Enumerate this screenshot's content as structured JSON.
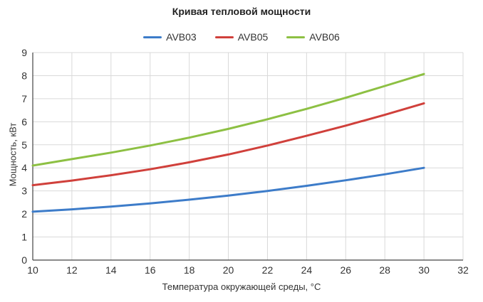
{
  "chart_data": {
    "type": "line",
    "title": "Кривая тепловой мощности",
    "xlabel": "Температура окружающей среды, °С",
    "ylabel": "Мощность, кВт",
    "xlim": [
      10,
      32
    ],
    "ylim": [
      0,
      9
    ],
    "xticks": [
      "10",
      "12",
      "14",
      "16",
      "18",
      "20",
      "22",
      "24",
      "26",
      "28",
      "30",
      "32"
    ],
    "yticks": [
      "0",
      "1",
      "2",
      "3",
      "4",
      "5",
      "6",
      "7",
      "8",
      "9"
    ],
    "grid": true,
    "legend_position": "top",
    "x": [
      10,
      12,
      14,
      16,
      18,
      20,
      22,
      24,
      26,
      28,
      30
    ],
    "series": [
      {
        "name": "AVB03",
        "color": "#3d7cc9",
        "values": [
          2.1,
          2.2,
          2.32,
          2.46,
          2.62,
          2.8,
          3.0,
          3.22,
          3.46,
          3.72,
          4.0
        ]
      },
      {
        "name": "AVB05",
        "color": "#d0403b",
        "values": [
          3.25,
          3.45,
          3.68,
          3.94,
          4.24,
          4.58,
          4.97,
          5.39,
          5.83,
          6.3,
          6.8
        ]
      },
      {
        "name": "AVB06",
        "color": "#8dc043",
        "values": [
          4.1,
          4.38,
          4.66,
          4.97,
          5.31,
          5.69,
          6.11,
          6.56,
          7.04,
          7.55,
          8.07
        ]
      }
    ]
  }
}
